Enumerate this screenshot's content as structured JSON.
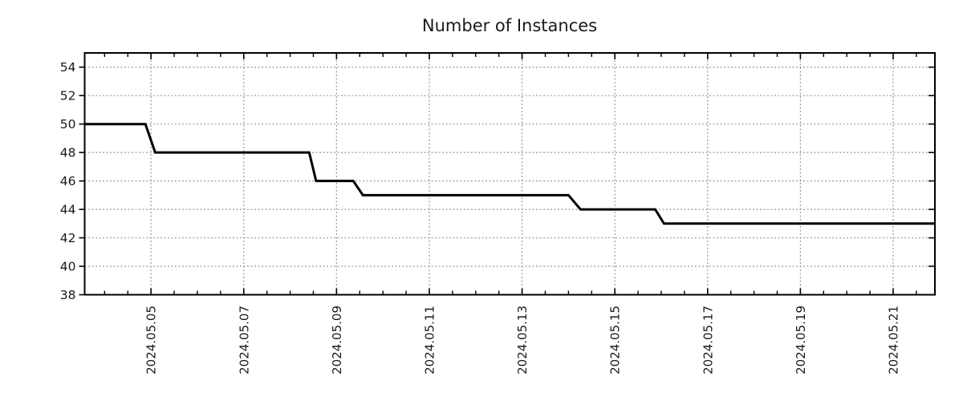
{
  "title": "Number of Instances",
  "colors": {
    "line": "#000000",
    "grid": "#999999",
    "axis": "#000000",
    "text": "#1a1a1a",
    "background": "#ffffff"
  },
  "chart_data": {
    "type": "line",
    "title": "Number of Instances",
    "xlabel": "",
    "ylabel": "",
    "legend": "none",
    "grid": "dotted",
    "series": [
      {
        "name": "Number of Instances",
        "x_unit": "day of May 2024 (decimal)",
        "points": [
          {
            "x": 3.57,
            "y": 50
          },
          {
            "x": 4.88,
            "y": 50
          },
          {
            "x": 5.09,
            "y": 48
          },
          {
            "x": 8.41,
            "y": 48
          },
          {
            "x": 8.56,
            "y": 46
          },
          {
            "x": 9.36,
            "y": 46
          },
          {
            "x": 9.57,
            "y": 45
          },
          {
            "x": 14.0,
            "y": 45
          },
          {
            "x": 14.26,
            "y": 44
          },
          {
            "x": 15.87,
            "y": 44
          },
          {
            "x": 16.06,
            "y": 43
          },
          {
            "x": 21.9,
            "y": 43
          }
        ]
      }
    ],
    "step_summary": [
      {
        "period": "chart start to 2024-05-04 ~21:00",
        "value": 50
      },
      {
        "period": "2024-05-05 ~02:00 to 2024-05-08 ~10:00",
        "value": 48
      },
      {
        "period": "2024-05-08 ~13:30 to 2024-05-09 ~09:00",
        "value": 46
      },
      {
        "period": "2024-05-09 ~14:00 to 2024-05-14 ~00:00",
        "value": 45
      },
      {
        "period": "2024-05-14 ~06:00 to 2024-05-15 ~21:00",
        "value": 44
      },
      {
        "period": "2024-05-16 ~01:00 to chart end",
        "value": 43
      }
    ],
    "x_axis": {
      "tick_labels": [
        "2024.05.05",
        "2024.05.07",
        "2024.05.09",
        "2024.05.11",
        "2024.05.13",
        "2024.05.15",
        "2024.05.17",
        "2024.05.19",
        "2024.05.21"
      ],
      "tick_positions": [
        5,
        7,
        9,
        11,
        13,
        15,
        17,
        19,
        21
      ],
      "minor_tick_step": 0.5,
      "range": [
        3.57,
        21.9
      ],
      "label_rotation_deg": 90
    },
    "y_axis": {
      "tick_labels": [
        "38",
        "40",
        "42",
        "44",
        "46",
        "48",
        "50",
        "52",
        "54"
      ],
      "tick_positions": [
        38,
        40,
        42,
        44,
        46,
        48,
        50,
        52,
        54
      ],
      "range": [
        38,
        55
      ]
    }
  }
}
